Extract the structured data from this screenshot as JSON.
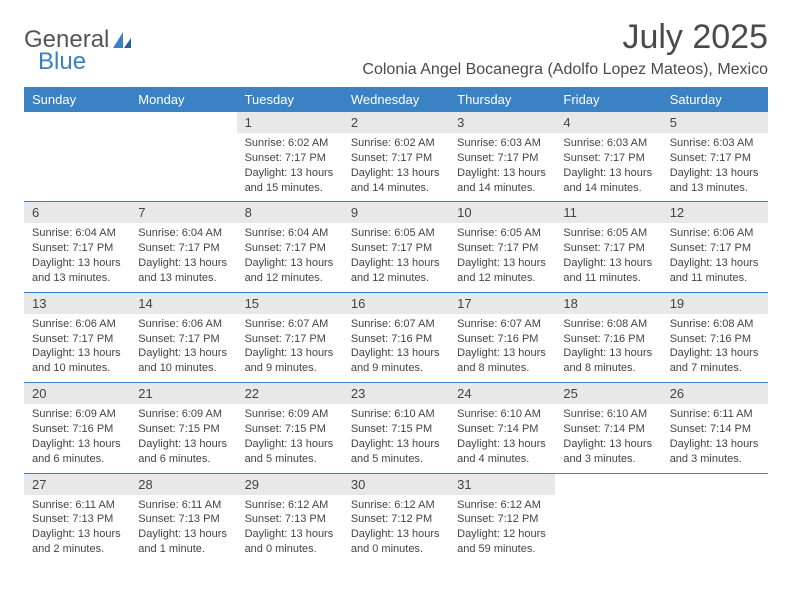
{
  "logo": {
    "text1": "General",
    "text2": "Blue"
  },
  "title": "July 2025",
  "subtitle": "Colonia Angel Bocanegra (Adolfo Lopez Mateos), Mexico",
  "colors": {
    "header_bg": "#3b82c4",
    "header_text": "#ffffff",
    "daynum_bg": "#e8e8e8",
    "text": "#444444",
    "row_border": "#3b82c4"
  },
  "day_headers": [
    "Sunday",
    "Monday",
    "Tuesday",
    "Wednesday",
    "Thursday",
    "Friday",
    "Saturday"
  ],
  "weeks": [
    [
      {
        "n": "",
        "sr": "",
        "ss": "",
        "dl": ""
      },
      {
        "n": "",
        "sr": "",
        "ss": "",
        "dl": ""
      },
      {
        "n": "1",
        "sr": "Sunrise: 6:02 AM",
        "ss": "Sunset: 7:17 PM",
        "dl": "Daylight: 13 hours and 15 minutes."
      },
      {
        "n": "2",
        "sr": "Sunrise: 6:02 AM",
        "ss": "Sunset: 7:17 PM",
        "dl": "Daylight: 13 hours and 14 minutes."
      },
      {
        "n": "3",
        "sr": "Sunrise: 6:03 AM",
        "ss": "Sunset: 7:17 PM",
        "dl": "Daylight: 13 hours and 14 minutes."
      },
      {
        "n": "4",
        "sr": "Sunrise: 6:03 AM",
        "ss": "Sunset: 7:17 PM",
        "dl": "Daylight: 13 hours and 14 minutes."
      },
      {
        "n": "5",
        "sr": "Sunrise: 6:03 AM",
        "ss": "Sunset: 7:17 PM",
        "dl": "Daylight: 13 hours and 13 minutes."
      }
    ],
    [
      {
        "n": "6",
        "sr": "Sunrise: 6:04 AM",
        "ss": "Sunset: 7:17 PM",
        "dl": "Daylight: 13 hours and 13 minutes."
      },
      {
        "n": "7",
        "sr": "Sunrise: 6:04 AM",
        "ss": "Sunset: 7:17 PM",
        "dl": "Daylight: 13 hours and 13 minutes."
      },
      {
        "n": "8",
        "sr": "Sunrise: 6:04 AM",
        "ss": "Sunset: 7:17 PM",
        "dl": "Daylight: 13 hours and 12 minutes."
      },
      {
        "n": "9",
        "sr": "Sunrise: 6:05 AM",
        "ss": "Sunset: 7:17 PM",
        "dl": "Daylight: 13 hours and 12 minutes."
      },
      {
        "n": "10",
        "sr": "Sunrise: 6:05 AM",
        "ss": "Sunset: 7:17 PM",
        "dl": "Daylight: 13 hours and 12 minutes."
      },
      {
        "n": "11",
        "sr": "Sunrise: 6:05 AM",
        "ss": "Sunset: 7:17 PM",
        "dl": "Daylight: 13 hours and 11 minutes."
      },
      {
        "n": "12",
        "sr": "Sunrise: 6:06 AM",
        "ss": "Sunset: 7:17 PM",
        "dl": "Daylight: 13 hours and 11 minutes."
      }
    ],
    [
      {
        "n": "13",
        "sr": "Sunrise: 6:06 AM",
        "ss": "Sunset: 7:17 PM",
        "dl": "Daylight: 13 hours and 10 minutes."
      },
      {
        "n": "14",
        "sr": "Sunrise: 6:06 AM",
        "ss": "Sunset: 7:17 PM",
        "dl": "Daylight: 13 hours and 10 minutes."
      },
      {
        "n": "15",
        "sr": "Sunrise: 6:07 AM",
        "ss": "Sunset: 7:17 PM",
        "dl": "Daylight: 13 hours and 9 minutes."
      },
      {
        "n": "16",
        "sr": "Sunrise: 6:07 AM",
        "ss": "Sunset: 7:16 PM",
        "dl": "Daylight: 13 hours and 9 minutes."
      },
      {
        "n": "17",
        "sr": "Sunrise: 6:07 AM",
        "ss": "Sunset: 7:16 PM",
        "dl": "Daylight: 13 hours and 8 minutes."
      },
      {
        "n": "18",
        "sr": "Sunrise: 6:08 AM",
        "ss": "Sunset: 7:16 PM",
        "dl": "Daylight: 13 hours and 8 minutes."
      },
      {
        "n": "19",
        "sr": "Sunrise: 6:08 AM",
        "ss": "Sunset: 7:16 PM",
        "dl": "Daylight: 13 hours and 7 minutes."
      }
    ],
    [
      {
        "n": "20",
        "sr": "Sunrise: 6:09 AM",
        "ss": "Sunset: 7:16 PM",
        "dl": "Daylight: 13 hours and 6 minutes."
      },
      {
        "n": "21",
        "sr": "Sunrise: 6:09 AM",
        "ss": "Sunset: 7:15 PM",
        "dl": "Daylight: 13 hours and 6 minutes."
      },
      {
        "n": "22",
        "sr": "Sunrise: 6:09 AM",
        "ss": "Sunset: 7:15 PM",
        "dl": "Daylight: 13 hours and 5 minutes."
      },
      {
        "n": "23",
        "sr": "Sunrise: 6:10 AM",
        "ss": "Sunset: 7:15 PM",
        "dl": "Daylight: 13 hours and 5 minutes."
      },
      {
        "n": "24",
        "sr": "Sunrise: 6:10 AM",
        "ss": "Sunset: 7:14 PM",
        "dl": "Daylight: 13 hours and 4 minutes."
      },
      {
        "n": "25",
        "sr": "Sunrise: 6:10 AM",
        "ss": "Sunset: 7:14 PM",
        "dl": "Daylight: 13 hours and 3 minutes."
      },
      {
        "n": "26",
        "sr": "Sunrise: 6:11 AM",
        "ss": "Sunset: 7:14 PM",
        "dl": "Daylight: 13 hours and 3 minutes."
      }
    ],
    [
      {
        "n": "27",
        "sr": "Sunrise: 6:11 AM",
        "ss": "Sunset: 7:13 PM",
        "dl": "Daylight: 13 hours and 2 minutes."
      },
      {
        "n": "28",
        "sr": "Sunrise: 6:11 AM",
        "ss": "Sunset: 7:13 PM",
        "dl": "Daylight: 13 hours and 1 minute."
      },
      {
        "n": "29",
        "sr": "Sunrise: 6:12 AM",
        "ss": "Sunset: 7:13 PM",
        "dl": "Daylight: 13 hours and 0 minutes."
      },
      {
        "n": "30",
        "sr": "Sunrise: 6:12 AM",
        "ss": "Sunset: 7:12 PM",
        "dl": "Daylight: 13 hours and 0 minutes."
      },
      {
        "n": "31",
        "sr": "Sunrise: 6:12 AM",
        "ss": "Sunset: 7:12 PM",
        "dl": "Daylight: 12 hours and 59 minutes."
      },
      {
        "n": "",
        "sr": "",
        "ss": "",
        "dl": ""
      },
      {
        "n": "",
        "sr": "",
        "ss": "",
        "dl": ""
      }
    ]
  ]
}
